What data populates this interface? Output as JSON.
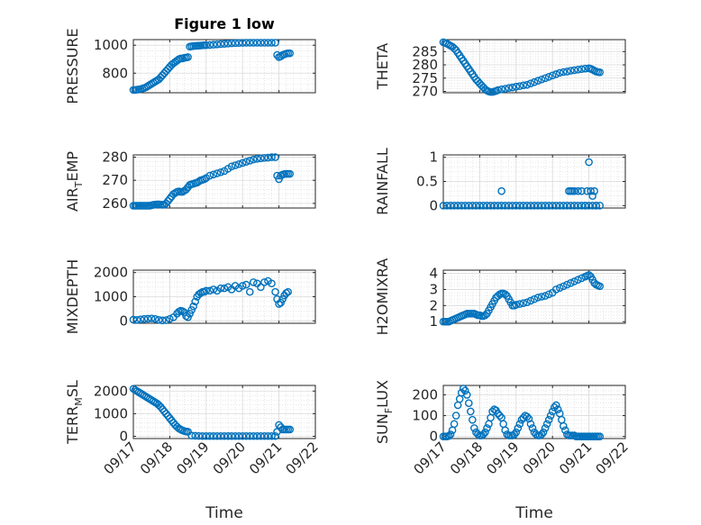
{
  "figure_title": "Figure 1 low",
  "colors": {
    "marker": "#0072BD",
    "axes": "#262626",
    "grid": "#d9d9d9",
    "plot_bg": "#ffffff"
  },
  "chart_data": [
    {
      "type": "scatter",
      "ylabel": "PRESSURE",
      "xlabel": "",
      "title": "Figure 1 low",
      "xlim": [
        0,
        5
      ],
      "ylim": [
        660,
        1040
      ],
      "yticks": [
        800,
        1000
      ],
      "xtick_labels": [],
      "grid": true,
      "x": [
        0.0,
        0.05,
        0.1,
        0.15,
        0.2,
        0.25,
        0.3,
        0.35,
        0.4,
        0.45,
        0.5,
        0.55,
        0.6,
        0.65,
        0.7,
        0.75,
        0.8,
        0.85,
        0.9,
        0.95,
        1.0,
        1.05,
        1.1,
        1.15,
        1.2,
        1.25,
        1.3,
        1.35,
        1.4,
        1.45,
        1.5,
        1.55,
        1.6,
        1.65,
        1.7,
        1.75,
        1.8,
        1.85,
        1.9,
        1.95,
        2.0,
        2.1,
        2.2,
        2.3,
        2.4,
        2.5,
        2.6,
        2.7,
        2.8,
        2.9,
        3.0,
        3.1,
        3.2,
        3.3,
        3.4,
        3.5,
        3.6,
        3.7,
        3.8,
        3.9,
        3.95,
        4.0,
        4.05,
        4.1,
        4.15,
        4.2,
        4.25,
        4.3
      ],
      "y": [
        680,
        680,
        682,
        684,
        686,
        690,
        694,
        700,
        708,
        716,
        724,
        732,
        740,
        748,
        756,
        770,
        785,
        800,
        815,
        830,
        845,
        860,
        870,
        880,
        890,
        900,
        905,
        905,
        910,
        912,
        915,
        990,
        992,
        994,
        995,
        996,
        997,
        998,
        999,
        1000,
        1000,
        1002,
        1004,
        1006,
        1008,
        1010,
        1012,
        1014,
        1015,
        1016,
        1017,
        1018,
        1018,
        1018,
        1018,
        1018,
        1018,
        1018,
        1018,
        1018,
        930,
        915,
        920,
        930,
        935,
        940,
        942,
        942
      ]
    },
    {
      "type": "scatter",
      "ylabel": "THETA",
      "xlabel": "",
      "xlim": [
        0,
        5
      ],
      "ylim": [
        269.5,
        289.5
      ],
      "yticks": [
        270,
        275,
        280,
        285
      ],
      "xtick_labels": [],
      "grid": true,
      "x": [
        0.0,
        0.05,
        0.1,
        0.15,
        0.2,
        0.25,
        0.3,
        0.35,
        0.4,
        0.45,
        0.5,
        0.55,
        0.6,
        0.65,
        0.7,
        0.75,
        0.8,
        0.85,
        0.9,
        0.95,
        1.0,
        1.05,
        1.1,
        1.15,
        1.2,
        1.25,
        1.3,
        1.35,
        1.4,
        1.45,
        1.5,
        1.6,
        1.7,
        1.8,
        1.9,
        2.0,
        2.1,
        2.2,
        2.3,
        2.4,
        2.5,
        2.6,
        2.7,
        2.8,
        2.9,
        3.0,
        3.1,
        3.2,
        3.3,
        3.4,
        3.5,
        3.6,
        3.7,
        3.8,
        3.9,
        4.0,
        4.05,
        4.1,
        4.15,
        4.2,
        4.25,
        4.3
      ],
      "y": [
        288.5,
        288.3,
        288,
        287.6,
        287.2,
        286.8,
        286.2,
        285.5,
        284.5,
        283.5,
        282.5,
        281.5,
        280.5,
        279.5,
        278.5,
        277.5,
        276.5,
        275.5,
        274.5,
        273.8,
        273,
        272.3,
        271.5,
        270.8,
        270.3,
        270,
        269.8,
        269.8,
        270,
        270.2,
        270.5,
        270.8,
        271,
        271.3,
        271.5,
        271.8,
        272,
        272.3,
        272.5,
        273,
        273.5,
        274,
        274.5,
        275,
        275.5,
        276,
        276.5,
        277,
        277.3,
        277.5,
        277.8,
        278,
        278.2,
        278.4,
        278.6,
        278.7,
        278.5,
        278.2,
        277.8,
        277.5,
        277.3,
        277.2
      ]
    },
    {
      "type": "scatter",
      "ylabel": "AIR_TEMP",
      "xlabel": "",
      "xlim": [
        0,
        5
      ],
      "ylim": [
        258,
        281
      ],
      "yticks": [
        260,
        270,
        280
      ],
      "xtick_labels": [],
      "grid": true,
      "x": [
        0.0,
        0.05,
        0.1,
        0.15,
        0.2,
        0.25,
        0.3,
        0.35,
        0.4,
        0.45,
        0.5,
        0.55,
        0.6,
        0.65,
        0.7,
        0.75,
        0.8,
        0.85,
        0.9,
        0.95,
        1.0,
        1.05,
        1.1,
        1.15,
        1.2,
        1.25,
        1.3,
        1.35,
        1.4,
        1.45,
        1.5,
        1.55,
        1.6,
        1.65,
        1.7,
        1.75,
        1.8,
        1.85,
        1.9,
        1.95,
        2.0,
        2.1,
        2.2,
        2.3,
        2.4,
        2.5,
        2.6,
        2.7,
        2.8,
        2.9,
        3.0,
        3.1,
        3.2,
        3.3,
        3.4,
        3.5,
        3.6,
        3.7,
        3.8,
        3.9,
        3.95,
        4.0,
        4.05,
        4.1,
        4.15,
        4.2,
        4.25,
        4.3
      ],
      "y": [
        259,
        259,
        259,
        259,
        259,
        259,
        259,
        259,
        259,
        259,
        259.2,
        259.4,
        259.5,
        259.6,
        259.6,
        259.5,
        259.4,
        259.5,
        260,
        261,
        262,
        263,
        264,
        264.5,
        265,
        265.2,
        265,
        265,
        265.5,
        266,
        267,
        268,
        268.3,
        268.5,
        268.8,
        269,
        269.5,
        270,
        270.2,
        270.5,
        271,
        272,
        272.5,
        273,
        273.5,
        274,
        275,
        276,
        276.5,
        277,
        277.5,
        278,
        278.5,
        279,
        279.3,
        279.5,
        279.7,
        279.8,
        280,
        280,
        272,
        270.5,
        272,
        272.5,
        272.7,
        272.8,
        272.8,
        272.8
      ]
    },
    {
      "type": "scatter",
      "ylabel": "RAINFALL",
      "xlabel": "",
      "xlim": [
        0,
        5
      ],
      "ylim": [
        -0.05,
        1.05
      ],
      "yticks": [
        0,
        0.5,
        1
      ],
      "xtick_labels": [],
      "grid": true,
      "x": [
        0.0,
        0.1,
        0.2,
        0.3,
        0.4,
        0.5,
        0.6,
        0.7,
        0.8,
        0.9,
        1.0,
        1.1,
        1.2,
        1.3,
        1.4,
        1.5,
        1.6,
        1.7,
        1.8,
        1.9,
        2.0,
        2.1,
        2.2,
        2.3,
        2.4,
        2.5,
        2.6,
        2.7,
        2.8,
        2.9,
        3.0,
        3.1,
        3.2,
        3.3,
        3.4,
        3.5,
        3.6,
        3.7,
        3.8,
        3.9,
        4.0,
        4.1,
        4.2,
        4.3,
        1.6,
        3.45,
        3.5,
        3.55,
        3.6,
        3.7,
        3.8,
        3.9,
        3.95,
        4.0,
        4.05,
        4.1,
        4.15,
        4.2
      ],
      "y": [
        0,
        0,
        0,
        0,
        0,
        0,
        0,
        0,
        0,
        0,
        0,
        0,
        0,
        0,
        0,
        0,
        0,
        0,
        0,
        0,
        0,
        0,
        0,
        0,
        0,
        0,
        0,
        0,
        0,
        0,
        0,
        0,
        0,
        0,
        0,
        0,
        0,
        0,
        0,
        0,
        0,
        0,
        0,
        0,
        0.3,
        0.3,
        0.3,
        0.3,
        0.3,
        0.3,
        0.3,
        0,
        0.3,
        0.9,
        0.3,
        0.2,
        0.3,
        0
      ]
    },
    {
      "type": "scatter",
      "ylabel": "MIXDEPTH",
      "xlabel": "",
      "xlim": [
        0,
        5
      ],
      "ylim": [
        -100,
        2100
      ],
      "yticks": [
        0,
        1000,
        2000
      ],
      "xtick_labels": [],
      "grid": true,
      "x": [
        0.0,
        0.1,
        0.2,
        0.3,
        0.4,
        0.5,
        0.6,
        0.7,
        0.8,
        0.9,
        1.0,
        1.1,
        1.2,
        1.25,
        1.3,
        1.35,
        1.4,
        1.45,
        1.5,
        1.55,
        1.6,
        1.65,
        1.7,
        1.75,
        1.8,
        1.85,
        1.9,
        1.95,
        2.0,
        2.1,
        2.2,
        2.3,
        2.4,
        2.5,
        2.6,
        2.7,
        2.8,
        2.9,
        3.0,
        3.1,
        3.2,
        3.3,
        3.4,
        3.5,
        3.6,
        3.7,
        3.8,
        3.9,
        3.95,
        4.0,
        4.05,
        4.1,
        4.15,
        4.2,
        4.25
      ],
      "y": [
        50,
        40,
        60,
        80,
        90,
        100,
        80,
        40,
        20,
        30,
        80,
        150,
        300,
        380,
        420,
        400,
        350,
        200,
        150,
        300,
        450,
        600,
        800,
        1000,
        1100,
        1150,
        1200,
        1200,
        1250,
        1250,
        1300,
        1250,
        1350,
        1350,
        1400,
        1300,
        1450,
        1350,
        1450,
        1500,
        1200,
        1600,
        1550,
        1400,
        1600,
        1650,
        1550,
        1200,
        900,
        700,
        750,
        900,
        1050,
        1150,
        1200
      ]
    },
    {
      "type": "scatter",
      "ylabel": "H2OMIXRA",
      "xlabel": "",
      "xlim": [
        0,
        5
      ],
      "ylim": [
        0.9,
        4.2
      ],
      "yticks": [
        1,
        2,
        3,
        4
      ],
      "xtick_labels": [],
      "grid": true,
      "x": [
        0.0,
        0.05,
        0.1,
        0.15,
        0.2,
        0.25,
        0.3,
        0.35,
        0.4,
        0.45,
        0.5,
        0.55,
        0.6,
        0.65,
        0.7,
        0.75,
        0.8,
        0.85,
        0.9,
        0.95,
        1.0,
        1.05,
        1.1,
        1.15,
        1.2,
        1.25,
        1.3,
        1.35,
        1.4,
        1.45,
        1.5,
        1.55,
        1.6,
        1.65,
        1.7,
        1.75,
        1.8,
        1.85,
        1.9,
        1.95,
        2.0,
        2.1,
        2.2,
        2.3,
        2.4,
        2.5,
        2.6,
        2.7,
        2.8,
        2.9,
        3.0,
        3.1,
        3.2,
        3.3,
        3.4,
        3.5,
        3.6,
        3.7,
        3.8,
        3.9,
        3.95,
        4.0,
        4.05,
        4.1,
        4.15,
        4.2,
        4.25,
        4.3
      ],
      "y": [
        1.0,
        1.0,
        1.0,
        1.0,
        1.05,
        1.1,
        1.15,
        1.2,
        1.25,
        1.3,
        1.35,
        1.4,
        1.45,
        1.5,
        1.5,
        1.5,
        1.5,
        1.5,
        1.45,
        1.4,
        1.4,
        1.35,
        1.35,
        1.4,
        1.5,
        1.7,
        1.9,
        2.1,
        2.3,
        2.5,
        2.6,
        2.7,
        2.75,
        2.75,
        2.7,
        2.6,
        2.4,
        2.2,
        2.0,
        2.0,
        2.05,
        2.1,
        2.15,
        2.2,
        2.3,
        2.4,
        2.5,
        2.55,
        2.6,
        2.7,
        2.8,
        3.0,
        3.1,
        3.2,
        3.3,
        3.4,
        3.5,
        3.6,
        3.7,
        3.8,
        3.85,
        3.9,
        3.8,
        3.6,
        3.4,
        3.3,
        3.25,
        3.2
      ]
    },
    {
      "type": "scatter",
      "ylabel": "TERR_MSL",
      "xlabel": "Time",
      "xlim": [
        0,
        5
      ],
      "ylim": [
        -100,
        2250
      ],
      "yticks": [
        0,
        1000,
        2000
      ],
      "xtick_labels": [
        "09/17",
        "09/18",
        "09/19",
        "09/20",
        "09/21",
        "09/22"
      ],
      "grid": true,
      "x": [
        0.0,
        0.05,
        0.1,
        0.15,
        0.2,
        0.25,
        0.3,
        0.35,
        0.4,
        0.45,
        0.5,
        0.55,
        0.6,
        0.65,
        0.7,
        0.75,
        0.8,
        0.85,
        0.9,
        0.95,
        1.0,
        1.05,
        1.1,
        1.15,
        1.2,
        1.25,
        1.3,
        1.35,
        1.4,
        1.45,
        1.5,
        1.6,
        1.7,
        1.8,
        1.9,
        2.0,
        2.1,
        2.2,
        2.3,
        2.4,
        2.5,
        2.6,
        2.7,
        2.8,
        2.9,
        3.0,
        3.1,
        3.2,
        3.3,
        3.4,
        3.5,
        3.6,
        3.7,
        3.8,
        3.9,
        3.95,
        4.0,
        4.05,
        4.1,
        4.15,
        4.2,
        4.25,
        4.3
      ],
      "y": [
        2100,
        2050,
        2000,
        1950,
        1900,
        1850,
        1800,
        1750,
        1700,
        1650,
        1600,
        1550,
        1500,
        1450,
        1380,
        1300,
        1200,
        1100,
        1000,
        900,
        800,
        700,
        600,
        500,
        420,
        350,
        300,
        260,
        230,
        210,
        200,
        30,
        20,
        15,
        10,
        10,
        10,
        10,
        10,
        10,
        10,
        10,
        10,
        10,
        10,
        10,
        10,
        10,
        10,
        10,
        10,
        10,
        10,
        10,
        10,
        200,
        500,
        400,
        300,
        300,
        300,
        300,
        300
      ]
    },
    {
      "type": "scatter",
      "ylabel": "SUN_FLUX",
      "xlabel": "Time",
      "xlim": [
        0,
        5
      ],
      "ylim": [
        -10,
        245
      ],
      "yticks": [
        0,
        100,
        200
      ],
      "xtick_labels": [
        "09/17",
        "09/18",
        "09/19",
        "09/20",
        "09/21",
        "09/22"
      ],
      "grid": true,
      "x": [
        0.0,
        0.05,
        0.1,
        0.15,
        0.2,
        0.25,
        0.3,
        0.35,
        0.4,
        0.45,
        0.5,
        0.55,
        0.6,
        0.65,
        0.7,
        0.75,
        0.8,
        0.85,
        0.9,
        0.95,
        1.0,
        1.05,
        1.1,
        1.15,
        1.2,
        1.25,
        1.3,
        1.35,
        1.4,
        1.45,
        1.5,
        1.55,
        1.6,
        1.65,
        1.7,
        1.75,
        1.8,
        1.85,
        1.9,
        1.95,
        2.0,
        2.05,
        2.1,
        2.15,
        2.2,
        2.25,
        2.3,
        2.35,
        2.4,
        2.45,
        2.5,
        2.55,
        2.6,
        2.65,
        2.7,
        2.75,
        2.8,
        2.85,
        2.9,
        2.95,
        3.0,
        3.05,
        3.1,
        3.15,
        3.2,
        3.25,
        3.3,
        3.35,
        3.4,
        3.45,
        3.5,
        3.55,
        3.6,
        3.65,
        3.7,
        3.75,
        3.8,
        3.85,
        3.9,
        3.95,
        4.0,
        4.05,
        4.1,
        4.15,
        4.2,
        4.25,
        4.3
      ],
      "y": [
        0,
        0,
        0,
        2,
        10,
        30,
        60,
        100,
        150,
        180,
        210,
        230,
        220,
        200,
        160,
        120,
        80,
        40,
        20,
        10,
        5,
        5,
        10,
        20,
        40,
        60,
        90,
        120,
        130,
        125,
        110,
        100,
        90,
        60,
        30,
        10,
        5,
        5,
        5,
        10,
        20,
        40,
        60,
        80,
        90,
        100,
        95,
        85,
        60,
        40,
        20,
        10,
        5,
        5,
        10,
        20,
        40,
        60,
        80,
        100,
        120,
        140,
        150,
        130,
        110,
        80,
        50,
        30,
        10,
        5,
        5,
        5,
        5,
        0,
        0,
        0,
        0,
        0,
        0,
        0,
        0,
        0,
        0,
        0,
        0,
        0,
        0
      ]
    }
  ]
}
